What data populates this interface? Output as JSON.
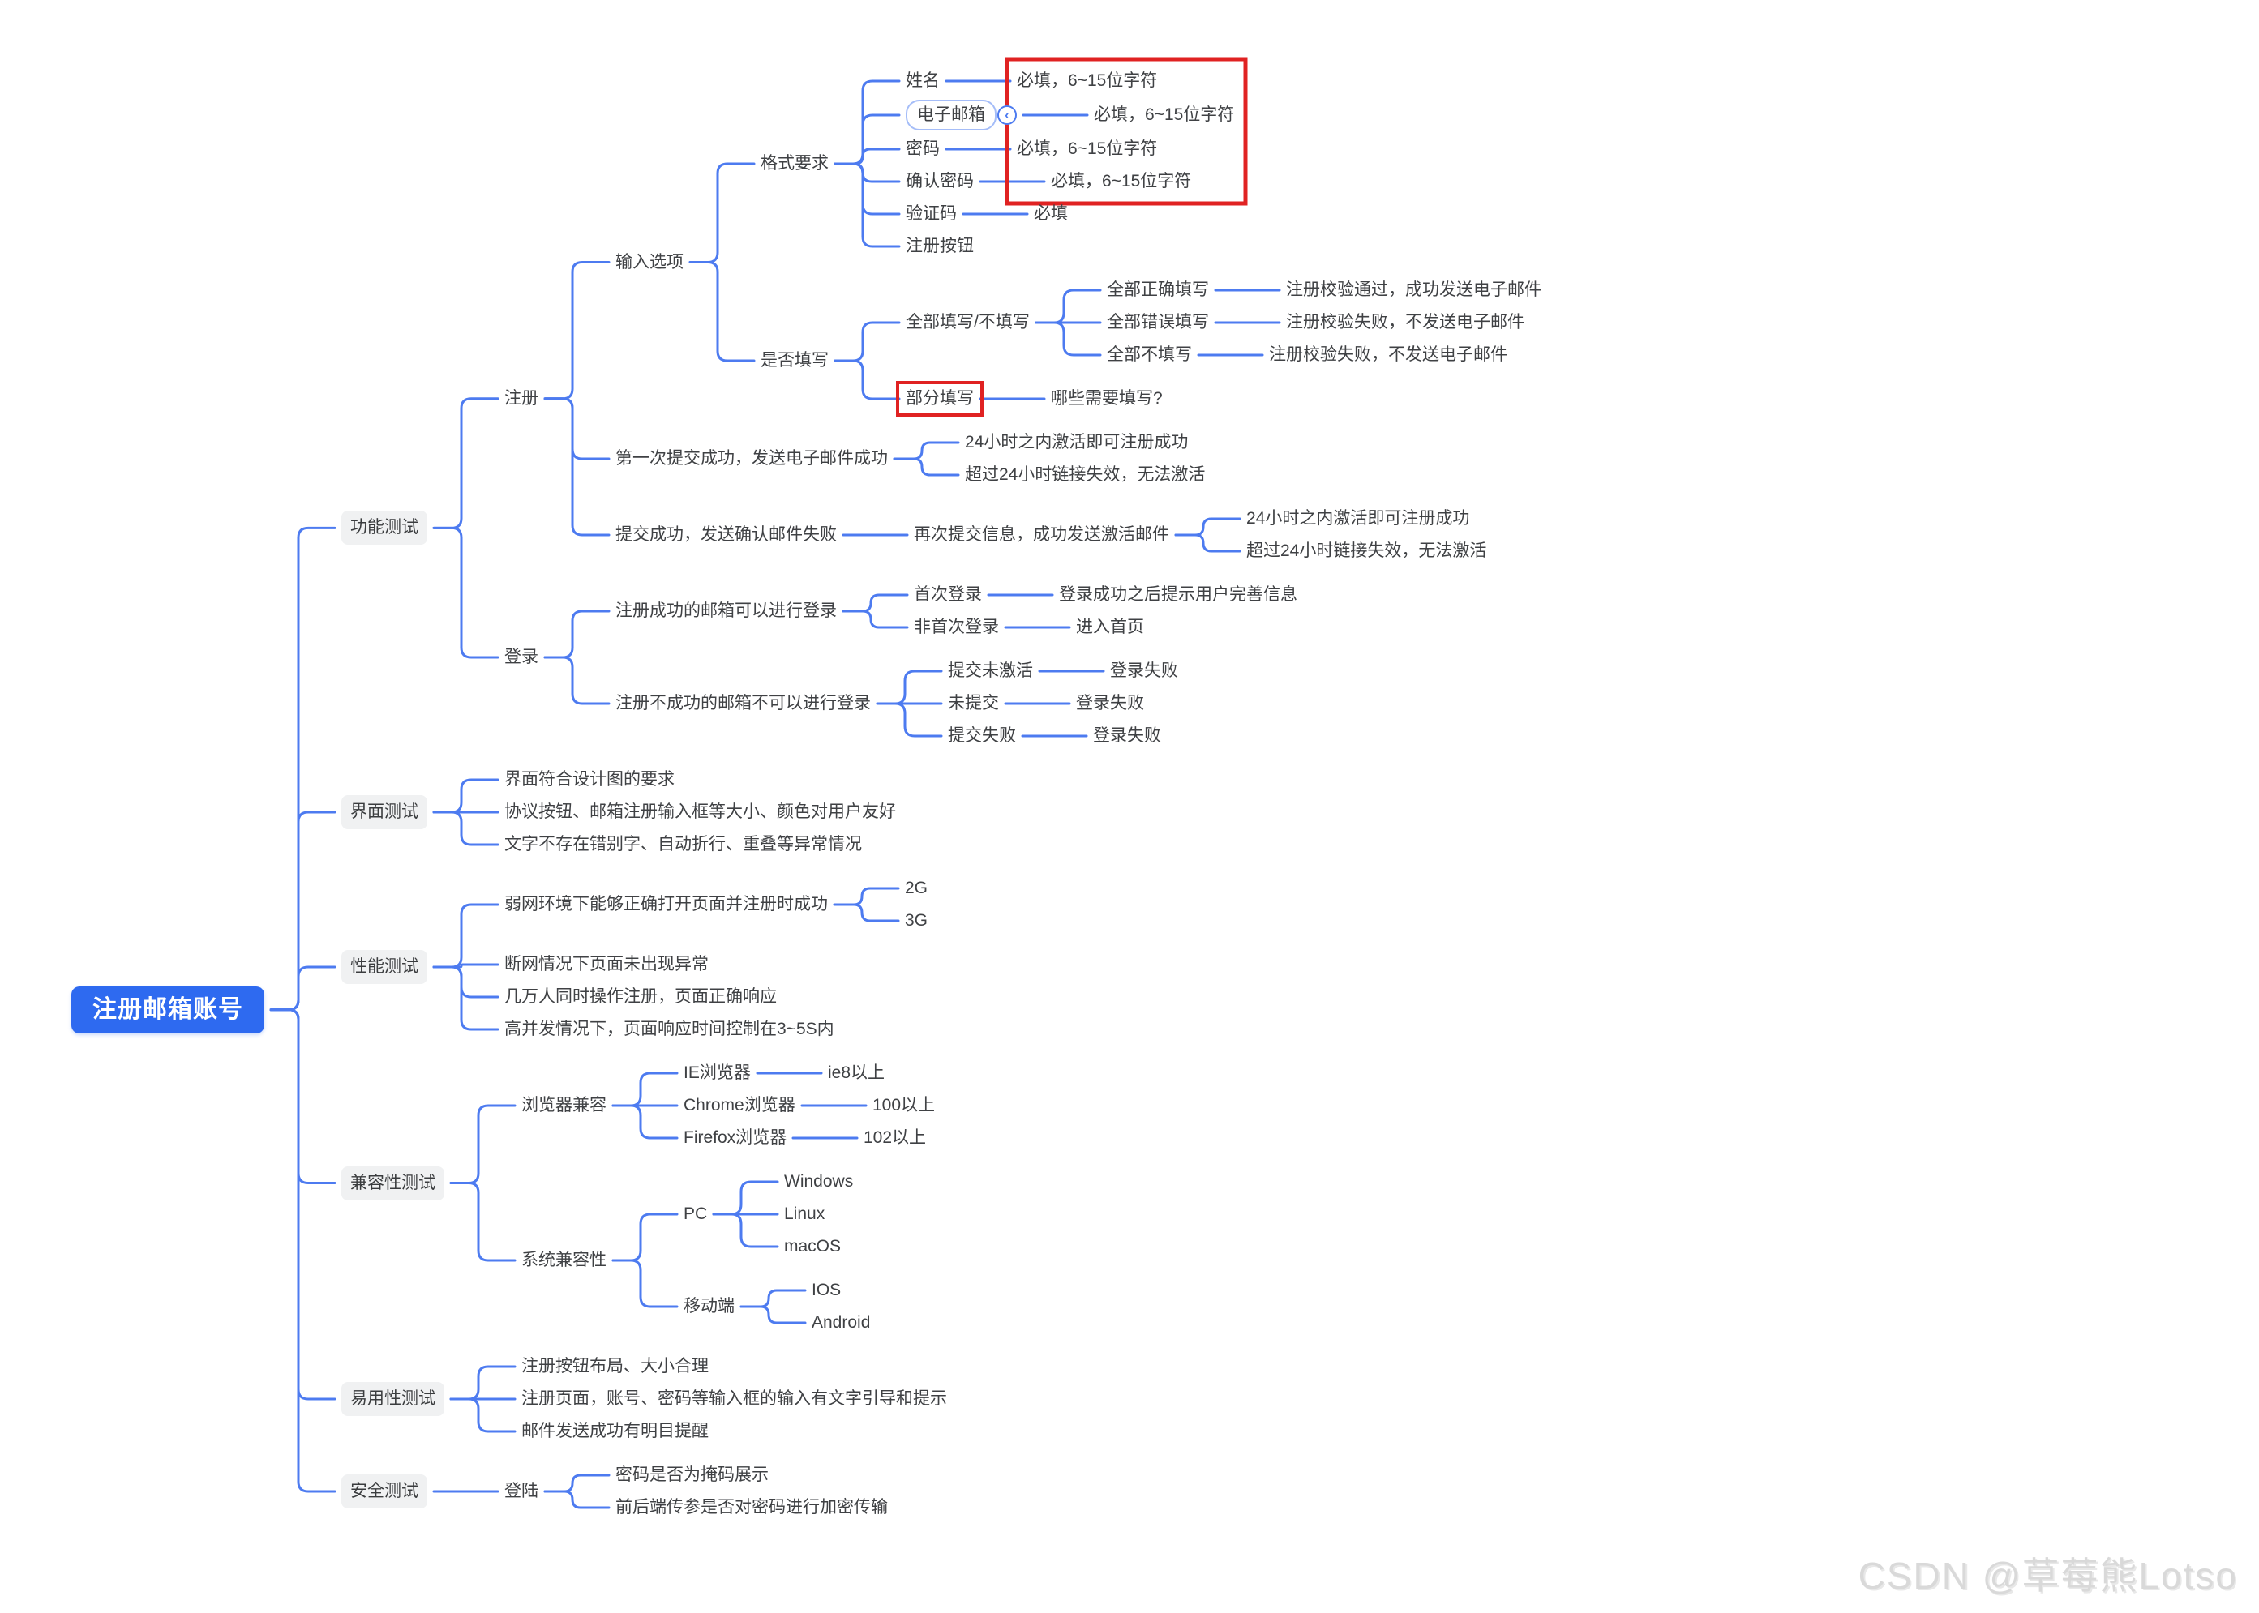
{
  "watermark": "CSDN @草莓熊Lotso",
  "colors": {
    "line": "#4d7bf0",
    "root_bg": "#2e6af0",
    "root_text": "#ffffff",
    "section_bg": "#f0f1f2",
    "text": "#3f4144",
    "highlight_red": "#e02222",
    "selection_border": "#a5bdf8"
  },
  "root": {
    "label": "注册邮箱账号",
    "type": "root",
    "children": [
      {
        "label": "功能测试",
        "type": "section",
        "children": [
          {
            "label": "注册",
            "children": [
              {
                "label": "输入选项",
                "children": [
                  {
                    "label": "格式要求",
                    "children": [
                      {
                        "label": "姓名",
                        "children": [
                          {
                            "label": "必填，6~15位字符",
                            "red_group": true
                          }
                        ]
                      },
                      {
                        "label": "电子邮箱",
                        "selected": true,
                        "collapse_icon": true,
                        "children": [
                          {
                            "label": "必填，6~15位字符",
                            "red_group": true
                          }
                        ]
                      },
                      {
                        "label": "密码",
                        "children": [
                          {
                            "label": "必填，6~15位字符",
                            "red_group": true
                          }
                        ]
                      },
                      {
                        "label": "确认密码",
                        "children": [
                          {
                            "label": "必填，6~15位字符",
                            "red_group": true
                          }
                        ]
                      },
                      {
                        "label": "验证码",
                        "children": [
                          {
                            "label": "必填"
                          }
                        ]
                      },
                      {
                        "label": "注册按钮"
                      }
                    ]
                  },
                  {
                    "label": "是否填写",
                    "children": [
                      {
                        "label": "全部填写/不填写",
                        "children": [
                          {
                            "label": "全部正确填写",
                            "children": [
                              {
                                "label": "注册校验通过，成功发送电子邮件"
                              }
                            ]
                          },
                          {
                            "label": "全部错误填写",
                            "children": [
                              {
                                "label": "注册校验失败，不发送电子邮件"
                              }
                            ]
                          },
                          {
                            "label": "全部不填写",
                            "children": [
                              {
                                "label": "注册校验失败，不发送电子邮件"
                              }
                            ]
                          }
                        ]
                      },
                      {
                        "label": "部分填写",
                        "red_box": true,
                        "children": [
                          {
                            "label": "哪些需要填写?"
                          }
                        ]
                      }
                    ]
                  }
                ]
              },
              {
                "label": "第一次提交成功，发送电子邮件成功",
                "children": [
                  {
                    "label": "24小时之内激活即可注册成功"
                  },
                  {
                    "label": "超过24小时链接失效，无法激活"
                  }
                ]
              },
              {
                "label": "提交成功，发送确认邮件失败",
                "children": [
                  {
                    "label": "再次提交信息，成功发送激活邮件",
                    "children": [
                      {
                        "label": "24小时之内激活即可注册成功"
                      },
                      {
                        "label": "超过24小时链接失效，无法激活"
                      }
                    ]
                  }
                ]
              }
            ]
          },
          {
            "label": "登录",
            "children": [
              {
                "label": "注册成功的邮箱可以进行登录",
                "children": [
                  {
                    "label": "首次登录",
                    "children": [
                      {
                        "label": "登录成功之后提示用户完善信息"
                      }
                    ]
                  },
                  {
                    "label": "非首次登录",
                    "children": [
                      {
                        "label": "进入首页"
                      }
                    ]
                  }
                ]
              },
              {
                "label": "注册不成功的邮箱不可以进行登录",
                "children": [
                  {
                    "label": "提交未激活",
                    "children": [
                      {
                        "label": "登录失败"
                      }
                    ]
                  },
                  {
                    "label": "未提交",
                    "children": [
                      {
                        "label": "登录失败"
                      }
                    ]
                  },
                  {
                    "label": "提交失败",
                    "children": [
                      {
                        "label": "登录失败"
                      }
                    ]
                  }
                ]
              }
            ]
          }
        ]
      },
      {
        "label": "界面测试",
        "type": "section",
        "children": [
          {
            "label": "界面符合设计图的要求"
          },
          {
            "label": "协议按钮、邮箱注册输入框等大小、颜色对用户友好"
          },
          {
            "label": "文字不存在错别字、自动折行、重叠等异常情况"
          }
        ]
      },
      {
        "label": "性能测试",
        "type": "section",
        "children": [
          {
            "label": "弱网环境下能够正确打开页面并注册时成功",
            "children": [
              {
                "label": "2G"
              },
              {
                "label": "3G"
              }
            ]
          },
          {
            "label": "断网情况下页面未出现异常"
          },
          {
            "label": "几万人同时操作注册，页面正确响应"
          },
          {
            "label": "高并发情况下，页面响应时间控制在3~5S内"
          }
        ]
      },
      {
        "label": "兼容性测试",
        "type": "section",
        "children": [
          {
            "label": "浏览器兼容",
            "children": [
              {
                "label": "IE浏览器",
                "children": [
                  {
                    "label": "ie8以上"
                  }
                ]
              },
              {
                "label": "Chrome浏览器",
                "children": [
                  {
                    "label": "100以上"
                  }
                ]
              },
              {
                "label": "Firefox浏览器",
                "children": [
                  {
                    "label": "102以上"
                  }
                ]
              }
            ]
          },
          {
            "label": "系统兼容性",
            "children": [
              {
                "label": "PC",
                "children": [
                  {
                    "label": "Windows"
                  },
                  {
                    "label": "Linux"
                  },
                  {
                    "label": "macOS"
                  }
                ]
              },
              {
                "label": "移动端",
                "children": [
                  {
                    "label": "IOS"
                  },
                  {
                    "label": "Android"
                  }
                ]
              }
            ]
          }
        ]
      },
      {
        "label": "易用性测试",
        "type": "section",
        "children": [
          {
            "label": "注册按钮布局、大小合理"
          },
          {
            "label": "注册页面，账号、密码等输入框的输入有文字引导和提示"
          },
          {
            "label": "邮件发送成功有明目提醒"
          }
        ]
      },
      {
        "label": "安全测试",
        "type": "section",
        "children": [
          {
            "label": "登陆",
            "children": [
              {
                "label": "密码是否为掩码展示"
              },
              {
                "label": "前后端传参是否对密码进行加密传输"
              }
            ]
          }
        ]
      }
    ]
  }
}
